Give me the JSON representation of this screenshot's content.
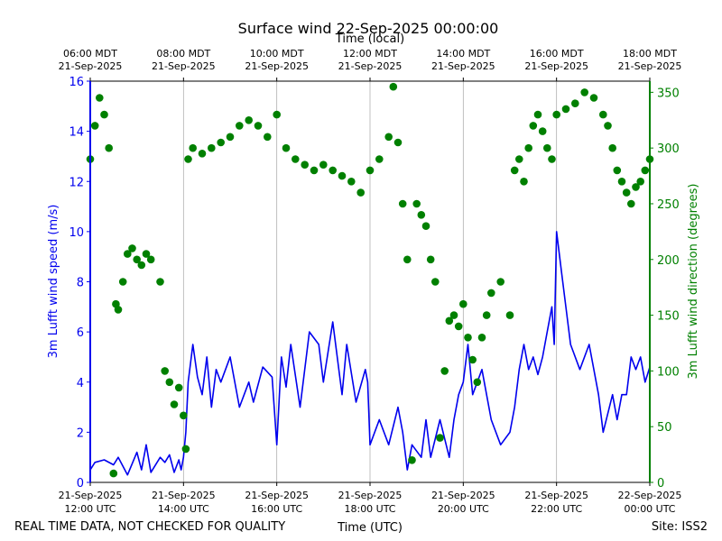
{
  "chart_data": {
    "type": "line+scatter",
    "title": "Surface wind 22-Sep-2025 00:00:00",
    "top_axis_title": "Time (local)",
    "top_ticks": [
      {
        "t": 6,
        "line1": "06:00 MDT",
        "line2": "21-Sep-2025"
      },
      {
        "t": 8,
        "line1": "08:00 MDT",
        "line2": "21-Sep-2025"
      },
      {
        "t": 10,
        "line1": "10:00 MDT",
        "line2": "21-Sep-2025"
      },
      {
        "t": 12,
        "line1": "12:00 MDT",
        "line2": "21-Sep-2025"
      },
      {
        "t": 14,
        "line1": "14:00 MDT",
        "line2": "21-Sep-2025"
      },
      {
        "t": 16,
        "line1": "16:00 MDT",
        "line2": "21-Sep-2025"
      },
      {
        "t": 18,
        "line1": "18:00 MDT",
        "line2": "21-Sep-2025"
      }
    ],
    "xlabel": "Time (UTC)",
    "x_ticks": [
      {
        "t": 12,
        "line1": "21-Sep-2025",
        "line2": "12:00 UTC"
      },
      {
        "t": 14,
        "line1": "21-Sep-2025",
        "line2": "14:00 UTC"
      },
      {
        "t": 16,
        "line1": "21-Sep-2025",
        "line2": "16:00 UTC"
      },
      {
        "t": 18,
        "line1": "21-Sep-2025",
        "line2": "18:00 UTC"
      },
      {
        "t": 20,
        "line1": "21-Sep-2025",
        "line2": "20:00 UTC"
      },
      {
        "t": 22,
        "line1": "21-Sep-2025",
        "line2": "22:00 UTC"
      },
      {
        "t": 24,
        "line1": "22-Sep-2025",
        "line2": "00:00 UTC"
      }
    ],
    "xlim": [
      12,
      24
    ],
    "ylabel_left": "3m Lufft wind speed (m/s)",
    "ylim_left": [
      0,
      16
    ],
    "yticks_left": [
      0,
      2,
      4,
      6,
      8,
      10,
      12,
      14,
      16
    ],
    "ylabel_right": "3m Lufft wind direction (degrees)",
    "ylim_right": [
      0,
      360
    ],
    "yticks_right": [
      0,
      50,
      100,
      150,
      200,
      250,
      300,
      350
    ],
    "grid": "vertical",
    "colors": {
      "speed": "#0000ee",
      "direction": "#008000"
    },
    "series": [
      {
        "name": "3m Lufft wind speed (m/s)",
        "axis": "left",
        "kind": "line",
        "x": [
          12.0,
          12.1,
          12.3,
          12.5,
          12.6,
          12.8,
          13.0,
          13.1,
          13.2,
          13.3,
          13.5,
          13.6,
          13.7,
          13.8,
          13.9,
          13.95,
          14.0,
          14.05,
          14.1,
          14.2,
          14.3,
          14.4,
          14.5,
          14.6,
          14.7,
          14.8,
          15.0,
          15.2,
          15.4,
          15.5,
          15.7,
          15.9,
          16.0,
          16.1,
          16.2,
          16.3,
          16.5,
          16.7,
          16.9,
          17.0,
          17.2,
          17.4,
          17.5,
          17.7,
          17.9,
          17.95,
          18.0,
          18.2,
          18.4,
          18.6,
          18.7,
          18.8,
          18.9,
          19.1,
          19.2,
          19.3,
          19.5,
          19.7,
          19.8,
          19.9,
          20.0,
          20.1,
          20.2,
          20.4,
          20.6,
          20.8,
          21.0,
          21.1,
          21.2,
          21.3,
          21.4,
          21.5,
          21.6,
          21.7,
          21.8,
          21.9,
          21.95,
          22.0,
          22.1,
          22.2,
          22.3,
          22.5,
          22.7,
          22.9,
          23.0,
          23.2,
          23.3,
          23.4,
          23.5,
          23.6,
          23.7,
          23.8,
          23.9,
          24.0
        ],
        "values": [
          0.5,
          0.8,
          0.9,
          0.7,
          1.0,
          0.3,
          1.2,
          0.5,
          1.5,
          0.4,
          1.0,
          0.8,
          1.1,
          0.4,
          0.9,
          0.5,
          1.0,
          2.0,
          4.0,
          5.5,
          4.2,
          3.5,
          5.0,
          3.0,
          4.5,
          4.0,
          5.0,
          3.0,
          4.0,
          3.2,
          4.6,
          4.2,
          1.5,
          5.0,
          3.8,
          5.5,
          3.0,
          6.0,
          5.5,
          4.0,
          6.4,
          3.5,
          5.5,
          3.2,
          4.5,
          4.0,
          1.5,
          2.5,
          1.5,
          3.0,
          2.0,
          0.5,
          1.5,
          1.0,
          2.5,
          1.0,
          2.5,
          1.0,
          2.5,
          3.5,
          4.0,
          5.5,
          3.5,
          4.5,
          2.5,
          1.5,
          2.0,
          3.0,
          4.5,
          5.5,
          4.5,
          5.0,
          4.3,
          5.0,
          6.0,
          7.0,
          5.5,
          10.0,
          8.5,
          7.0,
          5.5,
          4.5,
          5.5,
          3.5,
          2.0,
          3.5,
          2.5,
          3.5,
          3.5,
          5.0,
          4.5,
          5.0,
          4.0,
          4.6
        ]
      },
      {
        "name": "3m Lufft wind direction (degrees)",
        "axis": "right",
        "kind": "scatter",
        "x": [
          12.0,
          12.1,
          12.2,
          12.3,
          12.4,
          12.5,
          12.55,
          12.6,
          12.7,
          12.8,
          12.9,
          13.0,
          13.1,
          13.2,
          13.3,
          13.5,
          13.6,
          13.7,
          13.8,
          13.9,
          14.0,
          14.05,
          14.1,
          14.2,
          14.4,
          14.6,
          14.8,
          15.0,
          15.2,
          15.4,
          15.6,
          15.8,
          16.0,
          16.2,
          16.4,
          16.6,
          16.8,
          17.0,
          17.2,
          17.4,
          17.6,
          17.8,
          18.0,
          18.2,
          18.4,
          18.5,
          18.6,
          18.7,
          18.8,
          18.9,
          19.0,
          19.1,
          19.2,
          19.3,
          19.4,
          19.5,
          19.6,
          19.7,
          19.8,
          19.9,
          20.0,
          20.1,
          20.2,
          20.3,
          20.4,
          20.5,
          20.6,
          20.8,
          21.0,
          21.1,
          21.2,
          21.3,
          21.4,
          21.5,
          21.6,
          21.7,
          21.8,
          21.9,
          22.0,
          22.2,
          22.4,
          22.6,
          22.8,
          23.0,
          23.1,
          23.2,
          23.3,
          23.4,
          23.5,
          23.6,
          23.7,
          23.8,
          23.9,
          24.0
        ],
        "values": [
          290,
          320,
          345,
          330,
          300,
          8,
          160,
          155,
          180,
          205,
          210,
          200,
          195,
          205,
          200,
          180,
          100,
          90,
          70,
          85,
          60,
          30,
          290,
          300,
          295,
          300,
          305,
          310,
          320,
          325,
          320,
          310,
          330,
          300,
          290,
          285,
          280,
          285,
          280,
          275,
          270,
          260,
          280,
          290,
          310,
          355,
          305,
          250,
          200,
          20,
          250,
          240,
          230,
          200,
          180,
          40,
          100,
          145,
          150,
          140,
          160,
          130,
          110,
          90,
          130,
          150,
          170,
          180,
          150,
          280,
          290,
          270,
          300,
          320,
          330,
          315,
          300,
          290,
          330,
          335,
          340,
          350,
          345,
          330,
          320,
          300,
          280,
          270,
          260,
          250,
          265,
          270,
          280,
          290
        ]
      }
    ]
  },
  "footer": {
    "disclaimer": "REAL TIME DATA, NOT CHECKED FOR QUALITY",
    "site": "Site: ISS2"
  }
}
